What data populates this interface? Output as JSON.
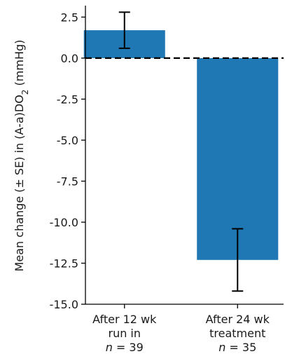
{
  "chart_data": {
    "type": "bar",
    "categories": [
      {
        "lines": [
          "After 12 wk",
          "run in"
        ],
        "n_label": "n",
        "n_value": "= 39"
      },
      {
        "lines": [
          "After 24 wk",
          "treatment"
        ],
        "n_label": "n",
        "n_value": "= 35"
      }
    ],
    "values": [
      1.7,
      -12.3
    ],
    "error_low": [
      0.6,
      -14.2
    ],
    "error_high": [
      2.8,
      -10.4
    ],
    "ylabel": {
      "prefix": "Mean change (± SE) in (A-a)DO",
      "subscript": "2",
      "suffix": " (mmHg)"
    },
    "ylim": [
      -15.0,
      3.2
    ],
    "yticks": [
      "2.5",
      "0.0",
      "-2.5",
      "-5.0",
      "-7.5",
      "-10.0",
      "-12.5",
      "-15.0"
    ],
    "ytick_values": [
      2.5,
      0.0,
      -2.5,
      -5.0,
      -7.5,
      -10.0,
      -12.5,
      -15.0
    ],
    "reference_line": {
      "value": 0.0,
      "style": "dashed"
    },
    "bar_color": "#1f77b4",
    "error_color": "#000000"
  }
}
